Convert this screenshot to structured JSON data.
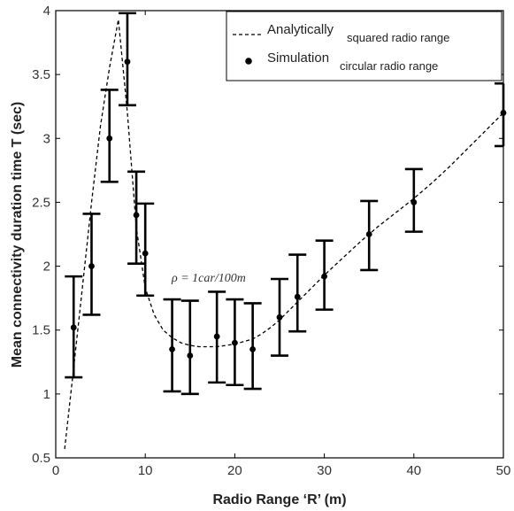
{
  "chart_data": {
    "type": "line",
    "xlabel": "Radio Range ‘R’ (m)",
    "ylabel": "Mean connectivity duration time T (sec)",
    "xlim": [
      0,
      50
    ],
    "ylim": [
      0.5,
      4
    ],
    "x_ticks": [
      "0",
      "10",
      "20",
      "30",
      "40",
      "50"
    ],
    "y_ticks": [
      "0.5",
      "1",
      "1.5",
      "2",
      "2.5",
      "3",
      "3.5",
      "4"
    ],
    "grid": false,
    "legend_position": "top-right",
    "annotation": "ρ = 1car/100m",
    "series": [
      {
        "name": "Analytically",
        "name_sub": "squared radio range",
        "style": "dashed",
        "color": "#000000",
        "points": [
          [
            1,
            0.57
          ],
          [
            2,
            1.2
          ],
          [
            3,
            1.85
          ],
          [
            4,
            2.5
          ],
          [
            5,
            3.1
          ],
          [
            6,
            3.55
          ],
          [
            7,
            3.93
          ],
          [
            8,
            3.2
          ],
          [
            9,
            2.3
          ],
          [
            10,
            1.83
          ],
          [
            11,
            1.62
          ],
          [
            12,
            1.5
          ],
          [
            13,
            1.44
          ],
          [
            14,
            1.4
          ],
          [
            15,
            1.38
          ],
          [
            16,
            1.37
          ],
          [
            17,
            1.37
          ],
          [
            18,
            1.37
          ],
          [
            19,
            1.38
          ],
          [
            20,
            1.39
          ],
          [
            21,
            1.41
          ],
          [
            22,
            1.43
          ],
          [
            23,
            1.47
          ],
          [
            24,
            1.52
          ],
          [
            25,
            1.58
          ],
          [
            26,
            1.65
          ],
          [
            27,
            1.72
          ],
          [
            28,
            1.79
          ],
          [
            29,
            1.86
          ],
          [
            30,
            1.93
          ],
          [
            32,
            2.06
          ],
          [
            34,
            2.19
          ],
          [
            36,
            2.31
          ],
          [
            38,
            2.42
          ],
          [
            40,
            2.53
          ],
          [
            42,
            2.65
          ],
          [
            44,
            2.78
          ],
          [
            46,
            2.92
          ],
          [
            48,
            3.06
          ],
          [
            50,
            3.2
          ]
        ]
      },
      {
        "name": "Simulation",
        "name_sub": "circular radio range",
        "style": "markers-errorbars",
        "color": "#000000",
        "points": [
          {
            "x": 2,
            "y": 1.52,
            "low": 1.13,
            "high": 1.92
          },
          {
            "x": 4,
            "y": 2.0,
            "low": 1.62,
            "high": 2.41
          },
          {
            "x": 6,
            "y": 3.0,
            "low": 2.66,
            "high": 3.38
          },
          {
            "x": 8,
            "y": 3.6,
            "low": 3.26,
            "high": 3.98
          },
          {
            "x": 9,
            "y": 2.4,
            "low": 2.02,
            "high": 2.74
          },
          {
            "x": 10,
            "y": 2.1,
            "low": 1.77,
            "high": 2.49
          },
          {
            "x": 13,
            "y": 1.35,
            "low": 1.02,
            "high": 1.74
          },
          {
            "x": 15,
            "y": 1.3,
            "low": 1.0,
            "high": 1.73
          },
          {
            "x": 18,
            "y": 1.45,
            "low": 1.09,
            "high": 1.8
          },
          {
            "x": 20,
            "y": 1.4,
            "low": 1.07,
            "high": 1.74
          },
          {
            "x": 22,
            "y": 1.35,
            "low": 1.04,
            "high": 1.71
          },
          {
            "x": 25,
            "y": 1.6,
            "low": 1.3,
            "high": 1.9
          },
          {
            "x": 27,
            "y": 1.76,
            "low": 1.49,
            "high": 2.09
          },
          {
            "x": 30,
            "y": 1.92,
            "low": 1.66,
            "high": 2.2
          },
          {
            "x": 35,
            "y": 2.25,
            "low": 1.97,
            "high": 2.51
          },
          {
            "x": 40,
            "y": 2.5,
            "low": 2.27,
            "high": 2.76
          },
          {
            "x": 50,
            "y": 3.2,
            "low": 2.94,
            "high": 3.43
          }
        ]
      }
    ]
  }
}
